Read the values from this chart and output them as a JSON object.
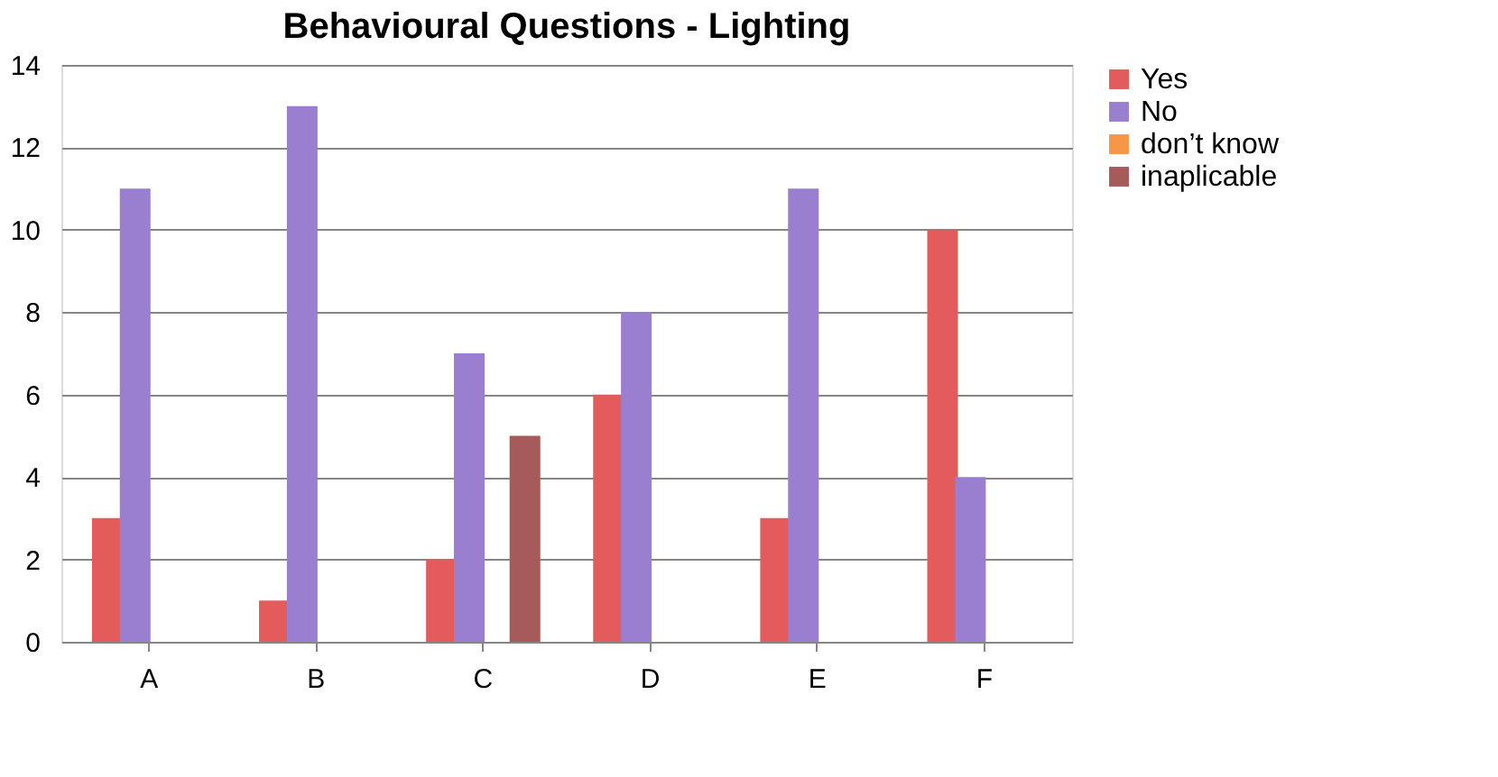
{
  "chart_data": {
    "type": "bar",
    "title": "Behavioural Questions - Lighting",
    "categories": [
      "A",
      "B",
      "C",
      "D",
      "E",
      "F"
    ],
    "series": [
      {
        "name": "Yes",
        "color": "#e35b5b",
        "values": [
          3,
          1,
          2,
          6,
          3,
          10
        ]
      },
      {
        "name": "No",
        "color": "#9a7fd1",
        "values": [
          11,
          13,
          7,
          8,
          11,
          4
        ]
      },
      {
        "name": "don’t know",
        "color": "#f79646",
        "values": [
          0,
          0,
          0,
          0,
          0,
          0
        ]
      },
      {
        "name": "inaplicable",
        "color": "#a65a5a",
        "values": [
          0,
          0,
          5,
          0,
          0,
          0
        ]
      }
    ],
    "ylim": [
      0,
      14
    ],
    "yticks": [
      0,
      2,
      4,
      6,
      8,
      10,
      12,
      14
    ],
    "grid": "y",
    "legend": "right"
  }
}
